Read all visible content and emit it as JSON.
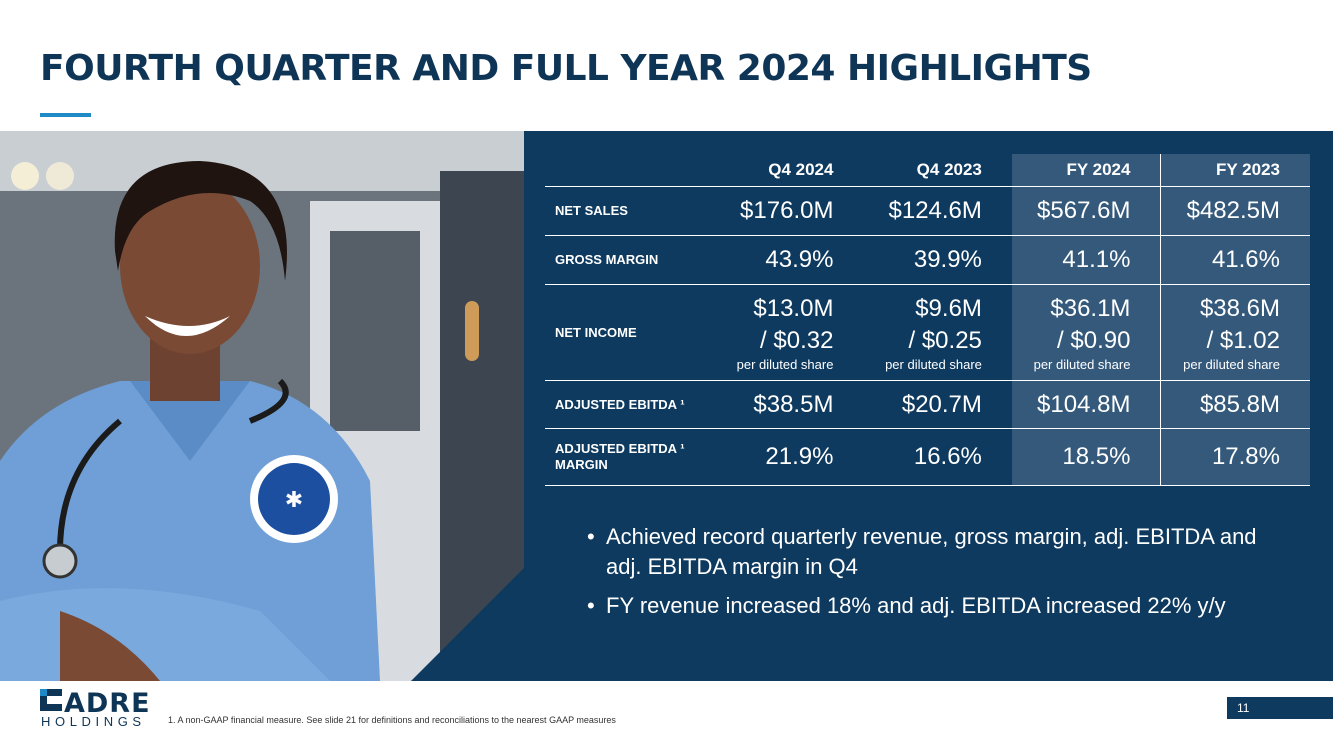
{
  "title": "FOURTH QUARTER AND FULL YEAR 2024 HIGHLIGHTS",
  "table": {
    "headers": [
      "Q4 2024",
      "Q4 2023",
      "FY 2024",
      "FY 2023"
    ],
    "rows": [
      {
        "label": "NET SALES",
        "values": [
          "$176.0M",
          "$124.6M",
          "$567.6M",
          "$482.5M"
        ]
      },
      {
        "label": "GROSS MARGIN",
        "values": [
          "43.9%",
          "39.9%",
          "41.1%",
          "41.6%"
        ]
      },
      {
        "label": "NET INCOME",
        "values": [
          "$13.0M",
          "$9.6M",
          "$36.1M",
          "$38.6M"
        ],
        "eps": [
          "/ $0.32",
          "/ $0.25",
          "/ $0.90",
          "/ $1.02"
        ],
        "eps_note": "per diluted share"
      },
      {
        "label": "ADJUSTED EBITDA ¹",
        "values": [
          "$38.5M",
          "$20.7M",
          "$104.8M",
          "$85.8M"
        ]
      },
      {
        "label_line1": "ADJUSTED EBITDA ¹",
        "label_line2": "MARGIN",
        "values": [
          "21.9%",
          "16.6%",
          "18.5%",
          "17.8%"
        ]
      }
    ]
  },
  "bullets": [
    "Achieved record quarterly revenue, gross margin, adj. EBITDA and adj. EBITDA margin in Q4",
    "FY revenue increased 18% and adj. EBITDA increased 22% y/y"
  ],
  "footer": {
    "logo_word": "ADRE",
    "logo_sub": "HOLDINGS",
    "footnote": "1.     A non-GAAP financial measure. See slide 21 for definitions and reconciliations to the nearest GAAP measures",
    "page_number": "11"
  },
  "colors": {
    "navy": "#0e3a5f",
    "fy_column": "#34597b",
    "title": "#0f3556",
    "accent": "#1f8ac6"
  }
}
